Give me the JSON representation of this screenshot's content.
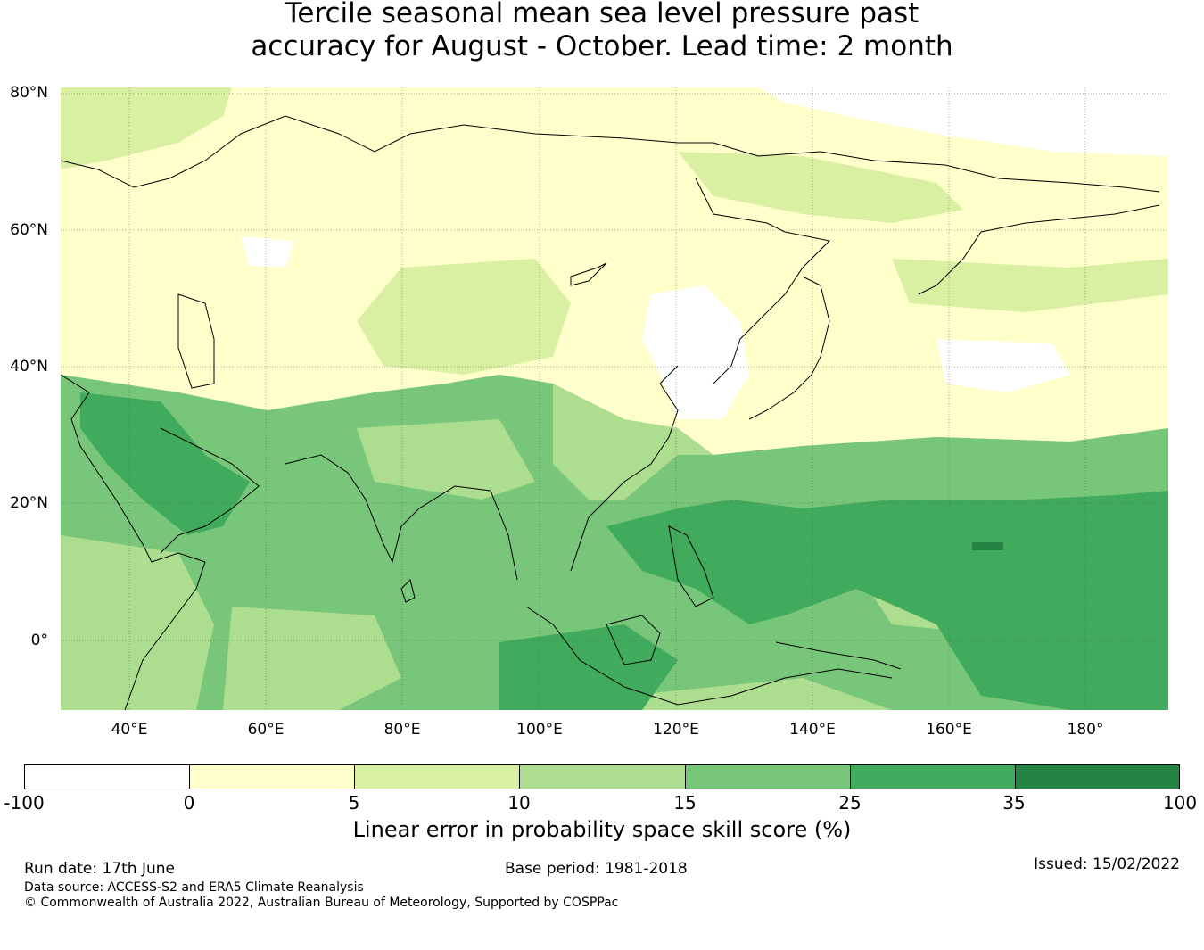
{
  "title": {
    "line1": "Tercile seasonal mean sea level pressure past",
    "line2": "accuracy for August - October. Lead time: 2 month"
  },
  "map": {
    "lat_ticks": [
      "80°N",
      "60°N",
      "40°N",
      "20°N",
      "0°"
    ],
    "lon_ticks": [
      "40°E",
      "60°E",
      "80°E",
      "100°E",
      "120°E",
      "140°E",
      "160°E",
      "180°"
    ],
    "region_lat_range": [
      -10,
      81
    ],
    "region_lon_range": [
      30,
      192
    ],
    "projection": "equirectangular",
    "layers": [
      "skill-shading",
      "coastlines",
      "graticule"
    ]
  },
  "colorbar": {
    "ticks": [
      "-100",
      "0",
      "5",
      "10",
      "15",
      "25",
      "35",
      "100"
    ],
    "colors": [
      "#ffffff",
      "#ffffcc",
      "#d9f0a3",
      "#addd8e",
      "#78c679",
      "#41ab5d",
      "#238443"
    ],
    "label": "Linear error in probability space skill score (%)"
  },
  "footer": {
    "run_date": "Run date: 17th June",
    "base_period": "Base period: 1981-2018",
    "issued": "Issued: 15/02/2022",
    "data_source": "Data source: ACCESS-S2 and ERA5 Climate Reanalysis",
    "copyright": "© Commonwealth of Australia 2022, Australian Bureau of Meteorology, Supported by COSPPac"
  }
}
